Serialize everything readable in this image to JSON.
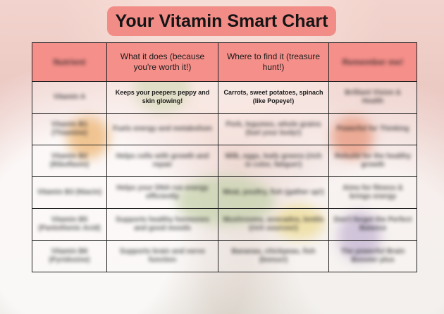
{
  "title": "Your Vitamin Smart Chart",
  "headers": [
    "Nutrient",
    "What it does (because you're worth it!)",
    "Where to find it (treasure hunt!)",
    "Remember me!"
  ],
  "rows": [
    [
      "Vitamin A",
      "Keeps your peepers peppy and skin glowing!",
      "Carrots, sweet potatoes, spinach (like Popeye!)",
      "Brilliant Vision & Health"
    ],
    [
      "Vitamin B1 (Thiamine)",
      "Fuels energy and metabolism",
      "Pork, legumes, whole grains (fuel your body!)",
      "Powerful for Thinking"
    ],
    [
      "Vitamin B2 (Riboflavin)",
      "Helps cells with growth and repair",
      "Milk, eggs, leafy greens (rich in color, fatigue!)",
      "Rebuild for the healthy growth"
    ],
    [
      "Vitamin B3 (Niacin)",
      "Helps your DNA run energy efficiently",
      "Meat, poultry, fish (gather up!)",
      "Aims for fitness & brings energy"
    ],
    [
      "Vitamin B5 (Pantothenic Acid)",
      "Supports healthy hormones and good moods",
      "Mushrooms, avocados, lentils (rich sources!)",
      "Don't forget the Perfect Balance"
    ],
    [
      "Vitamin B6 (Pyridoxine)",
      "Supports brain and nerve function",
      "Bananas, chickpeas, fish (bonus!)",
      "The powerful Brain Booster plus"
    ]
  ]
}
